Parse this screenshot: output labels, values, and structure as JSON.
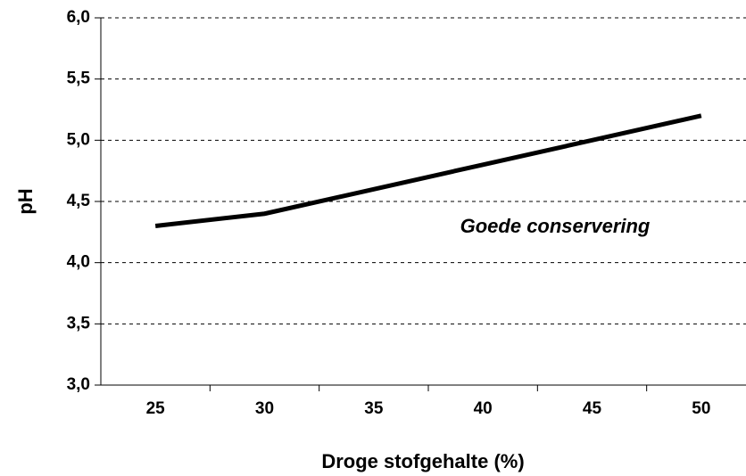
{
  "chart_data": {
    "type": "line",
    "x_label": "Droge stofgehalte (%)",
    "y_label": "pH",
    "annotation": "Goede conservering",
    "categories": [
      "25",
      "30",
      "35",
      "40",
      "45",
      "50"
    ],
    "values": [
      4.3,
      4.4,
      4.6,
      4.8,
      5.0,
      5.2
    ],
    "color": "#000000",
    "ylim": [
      3.0,
      6.0
    ],
    "yticks": [
      {
        "value": 3.0,
        "label": "3,0"
      },
      {
        "value": 3.5,
        "label": "3,5"
      },
      {
        "value": 4.0,
        "label": "4,0"
      },
      {
        "value": 4.5,
        "label": "4,5"
      },
      {
        "value": 5.0,
        "label": "5,0"
      },
      {
        "value": 5.5,
        "label": "5,5"
      },
      {
        "value": 6.0,
        "label": "6,0"
      }
    ],
    "grid": true
  }
}
